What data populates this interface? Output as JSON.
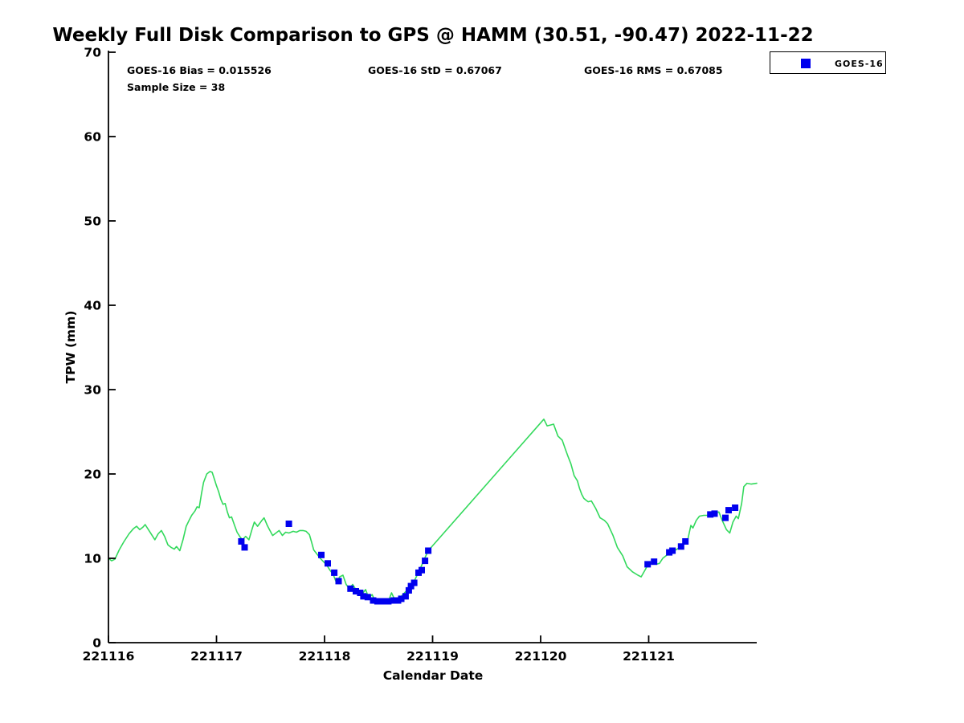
{
  "annotations": {
    "bias": "GOES-16 Bias = 0.015526",
    "std": "GOES-16 StD = 0.67067",
    "rms": "GOES-16 RMS = 0.67085",
    "sample_size": "Sample Size = 38"
  },
  "chart_data": {
    "type": "line",
    "title": "Weekly Full Disk Comparison to GPS @ HAMM (30.51, -90.47) 2022-11-22",
    "xlabel": "Calendar Date",
    "ylabel": "TPW (mm)",
    "x_tick_labels": [
      "221116",
      "221117",
      "221118",
      "221119",
      "221120",
      "221121"
    ],
    "x_tick_days": [
      0,
      1,
      2,
      3,
      4,
      5
    ],
    "y_ticks": [
      0,
      10,
      20,
      30,
      40,
      50,
      60,
      70
    ],
    "xlim_days": [
      0,
      6
    ],
    "ylim": [
      0,
      70
    ],
    "grid": false,
    "legend": {
      "label": "GOES-16",
      "position": "top-right",
      "marker": "square",
      "marker_color": "#0000ee"
    },
    "colors": {
      "gps_line": "#33d95c",
      "goes16_marker": "#0000ee",
      "axis": "#000000"
    },
    "series": [
      {
        "name": "GPS",
        "type": "line",
        "color": "#33d95c",
        "points": [
          [
            0.0,
            10.0
          ],
          [
            0.03,
            9.7
          ],
          [
            0.06,
            9.9
          ],
          [
            0.1,
            11.0
          ],
          [
            0.14,
            11.9
          ],
          [
            0.19,
            12.9
          ],
          [
            0.23,
            13.5
          ],
          [
            0.26,
            13.8
          ],
          [
            0.29,
            13.4
          ],
          [
            0.32,
            13.7
          ],
          [
            0.34,
            14.0
          ],
          [
            0.38,
            13.2
          ],
          [
            0.41,
            12.6
          ],
          [
            0.43,
            12.2
          ],
          [
            0.46,
            12.9
          ],
          [
            0.49,
            13.3
          ],
          [
            0.52,
            12.6
          ],
          [
            0.55,
            11.6
          ],
          [
            0.58,
            11.3
          ],
          [
            0.61,
            11.1
          ],
          [
            0.63,
            11.4
          ],
          [
            0.66,
            10.9
          ],
          [
            0.69,
            12.2
          ],
          [
            0.72,
            13.8
          ],
          [
            0.75,
            14.6
          ],
          [
            0.77,
            15.1
          ],
          [
            0.8,
            15.6
          ],
          [
            0.82,
            16.1
          ],
          [
            0.84,
            16.0
          ],
          [
            0.86,
            17.6
          ],
          [
            0.88,
            19.0
          ],
          [
            0.91,
            20.0
          ],
          [
            0.94,
            20.3
          ],
          [
            0.96,
            20.2
          ],
          [
            0.98,
            19.4
          ],
          [
            1.0,
            18.6
          ],
          [
            1.02,
            17.9
          ],
          [
            1.04,
            17.0
          ],
          [
            1.06,
            16.4
          ],
          [
            1.08,
            16.5
          ],
          [
            1.1,
            15.5
          ],
          [
            1.12,
            14.8
          ],
          [
            1.14,
            14.9
          ],
          [
            1.17,
            13.8
          ],
          [
            1.19,
            13.1
          ],
          [
            1.22,
            12.5
          ],
          [
            1.24,
            12.2
          ],
          [
            1.27,
            12.6
          ],
          [
            1.3,
            12.2
          ],
          [
            1.33,
            13.5
          ],
          [
            1.35,
            14.3
          ],
          [
            1.38,
            13.8
          ],
          [
            1.42,
            14.5
          ],
          [
            1.44,
            14.8
          ],
          [
            1.47,
            13.9
          ],
          [
            1.49,
            13.4
          ],
          [
            1.52,
            12.7
          ],
          [
            1.55,
            13.0
          ],
          [
            1.58,
            13.3
          ],
          [
            1.61,
            12.7
          ],
          [
            1.64,
            13.1
          ],
          [
            1.67,
            13.0
          ],
          [
            1.71,
            13.2
          ],
          [
            1.74,
            13.1
          ],
          [
            1.77,
            13.3
          ],
          [
            1.8,
            13.3
          ],
          [
            1.83,
            13.2
          ],
          [
            1.86,
            12.8
          ],
          [
            1.88,
            11.9
          ],
          [
            1.9,
            11.0
          ],
          [
            1.93,
            10.5
          ],
          [
            1.96,
            10.0
          ],
          [
            1.99,
            9.6
          ],
          [
            2.02,
            9.2
          ],
          [
            2.05,
            8.6
          ],
          [
            2.08,
            8.1
          ],
          [
            2.11,
            7.1
          ],
          [
            2.14,
            7.8
          ],
          [
            2.17,
            8.0
          ],
          [
            2.2,
            6.9
          ],
          [
            2.23,
            6.4
          ],
          [
            2.26,
            6.9
          ],
          [
            2.29,
            6.3
          ],
          [
            2.32,
            6.1
          ],
          [
            2.35,
            5.8
          ],
          [
            2.38,
            6.3
          ],
          [
            2.41,
            5.3
          ],
          [
            2.44,
            5.7
          ],
          [
            2.47,
            4.9
          ],
          [
            2.5,
            5.1
          ],
          [
            2.53,
            4.8
          ],
          [
            2.56,
            5.0
          ],
          [
            2.59,
            4.9
          ],
          [
            2.62,
            5.9
          ],
          [
            2.65,
            5.1
          ],
          [
            2.68,
            5.2
          ],
          [
            2.71,
            5.5
          ],
          [
            2.74,
            5.9
          ],
          [
            2.77,
            6.3
          ],
          [
            2.8,
            6.7
          ],
          [
            2.83,
            7.3
          ],
          [
            2.86,
            8.1
          ],
          [
            2.89,
            8.9
          ],
          [
            2.92,
            9.8
          ],
          [
            2.96,
            10.9
          ],
          [
            4.03,
            26.5
          ],
          [
            4.06,
            25.7
          ],
          [
            4.09,
            25.8
          ],
          [
            4.12,
            25.9
          ],
          [
            4.16,
            24.5
          ],
          [
            4.2,
            24.0
          ],
          [
            4.23,
            22.9
          ],
          [
            4.25,
            22.2
          ],
          [
            4.28,
            21.2
          ],
          [
            4.31,
            19.8
          ],
          [
            4.34,
            19.2
          ],
          [
            4.36,
            18.3
          ],
          [
            4.38,
            17.6
          ],
          [
            4.4,
            17.1
          ],
          [
            4.42,
            16.9
          ],
          [
            4.44,
            16.7
          ],
          [
            4.47,
            16.8
          ],
          [
            4.51,
            15.9
          ],
          [
            4.55,
            14.8
          ],
          [
            4.59,
            14.5
          ],
          [
            4.62,
            14.1
          ],
          [
            4.67,
            12.7
          ],
          [
            4.71,
            11.3
          ],
          [
            4.76,
            10.3
          ],
          [
            4.8,
            9.0
          ],
          [
            4.85,
            8.4
          ],
          [
            4.9,
            8.0
          ],
          [
            4.93,
            7.8
          ],
          [
            4.97,
            8.7
          ],
          [
            4.99,
            9.2
          ],
          [
            5.03,
            9.5
          ],
          [
            5.07,
            9.3
          ],
          [
            5.1,
            9.4
          ],
          [
            5.13,
            10.0
          ],
          [
            5.17,
            10.4
          ],
          [
            5.21,
            10.7
          ],
          [
            5.25,
            11.0
          ],
          [
            5.29,
            11.3
          ],
          [
            5.33,
            11.9
          ],
          [
            5.36,
            12.1
          ],
          [
            5.39,
            13.9
          ],
          [
            5.41,
            13.6
          ],
          [
            5.44,
            14.5
          ],
          [
            5.47,
            15.0
          ],
          [
            5.51,
            15.1
          ],
          [
            5.55,
            15.1
          ],
          [
            5.58,
            15.2
          ],
          [
            5.62,
            15.4
          ],
          [
            5.65,
            15.5
          ],
          [
            5.68,
            14.5
          ],
          [
            5.72,
            13.4
          ],
          [
            5.75,
            13.0
          ],
          [
            5.78,
            14.3
          ],
          [
            5.81,
            15.0
          ],
          [
            5.83,
            14.7
          ],
          [
            5.86,
            16.5
          ],
          [
            5.88,
            18.5
          ],
          [
            5.91,
            18.9
          ],
          [
            5.95,
            18.8
          ],
          [
            6.0,
            18.9
          ]
        ]
      },
      {
        "name": "GOES-16",
        "type": "scatter",
        "color": "#0000ee",
        "marker": "square",
        "points": [
          [
            1.23,
            12.0
          ],
          [
            1.26,
            11.3
          ],
          [
            1.67,
            14.1
          ],
          [
            1.97,
            10.4
          ],
          [
            2.03,
            9.4
          ],
          [
            2.09,
            8.3
          ],
          [
            2.13,
            7.3
          ],
          [
            2.24,
            6.4
          ],
          [
            2.29,
            6.1
          ],
          [
            2.33,
            5.9
          ],
          [
            2.36,
            5.5
          ],
          [
            2.4,
            5.4
          ],
          [
            2.45,
            5.0
          ],
          [
            2.49,
            4.9
          ],
          [
            2.54,
            4.9
          ],
          [
            2.59,
            4.9
          ],
          [
            2.64,
            5.0
          ],
          [
            2.68,
            5.0
          ],
          [
            2.71,
            5.2
          ],
          [
            2.75,
            5.5
          ],
          [
            2.78,
            6.2
          ],
          [
            2.8,
            6.7
          ],
          [
            2.83,
            7.1
          ],
          [
            2.87,
            8.3
          ],
          [
            2.9,
            8.6
          ],
          [
            2.93,
            9.7
          ],
          [
            2.96,
            10.9
          ],
          [
            4.99,
            9.3
          ],
          [
            5.05,
            9.6
          ],
          [
            5.19,
            10.7
          ],
          [
            5.22,
            10.9
          ],
          [
            5.3,
            11.4
          ],
          [
            5.34,
            12.0
          ],
          [
            5.57,
            15.2
          ],
          [
            5.61,
            15.3
          ],
          [
            5.71,
            14.8
          ],
          [
            5.74,
            15.7
          ],
          [
            5.8,
            16.0
          ]
        ]
      }
    ]
  }
}
